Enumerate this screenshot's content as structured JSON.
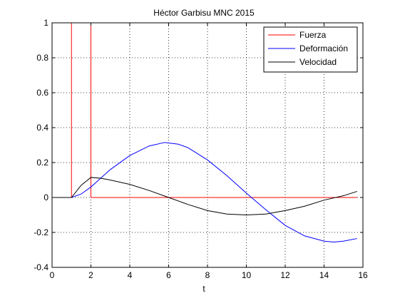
{
  "chart_data": {
    "type": "line",
    "title": "Héctor Garbisu MNC 2015",
    "xlabel": "t",
    "ylabel": "",
    "xlim": [
      0,
      16
    ],
    "ylim": [
      -0.4,
      1
    ],
    "xticks": [
      0,
      2,
      4,
      6,
      8,
      10,
      12,
      14,
      16
    ],
    "xtick_labels": [
      "0",
      "2",
      "4",
      "6",
      "8",
      "10",
      "12",
      "14",
      "16"
    ],
    "yticks": [
      -0.4,
      -0.2,
      0,
      0.2,
      0.4,
      0.6,
      0.8,
      1
    ],
    "ytick_labels": [
      "-0.4",
      "-0.2",
      "0",
      "0.2",
      "0.4",
      "0.6",
      "0.8",
      "1"
    ],
    "grid": true,
    "legend_position": "top-right",
    "series": [
      {
        "name": "Fuerza",
        "color": "#ff0000",
        "x": [
          0,
          1,
          1,
          2,
          2,
          15.7
        ],
        "y": [
          0,
          0,
          1,
          1,
          0,
          0
        ]
      },
      {
        "name": "Deformación",
        "color": "#0000ff",
        "x": [
          0,
          1,
          1.5,
          2,
          2.5,
          3,
          4,
          5,
          5.8,
          6.5,
          7,
          8,
          9,
          10,
          11,
          12,
          13,
          14,
          14.5,
          15,
          15.7
        ],
        "y": [
          0,
          0,
          0.02,
          0.06,
          0.11,
          0.16,
          0.24,
          0.295,
          0.315,
          0.305,
          0.285,
          0.215,
          0.125,
          0.025,
          -0.07,
          -0.16,
          -0.22,
          -0.25,
          -0.255,
          -0.25,
          -0.235
        ]
      },
      {
        "name": "Velocidad",
        "color": "#000000",
        "x": [
          0,
          1,
          1.5,
          2,
          2.5,
          3,
          4,
          5,
          6,
          7,
          8,
          9,
          10,
          11,
          12,
          13,
          14,
          15,
          15.7
        ],
        "y": [
          0,
          0,
          0.07,
          0.115,
          0.11,
          0.1,
          0.075,
          0.04,
          0,
          -0.04,
          -0.075,
          -0.095,
          -0.1,
          -0.095,
          -0.075,
          -0.05,
          -0.015,
          0.01,
          0.035
        ]
      }
    ]
  }
}
